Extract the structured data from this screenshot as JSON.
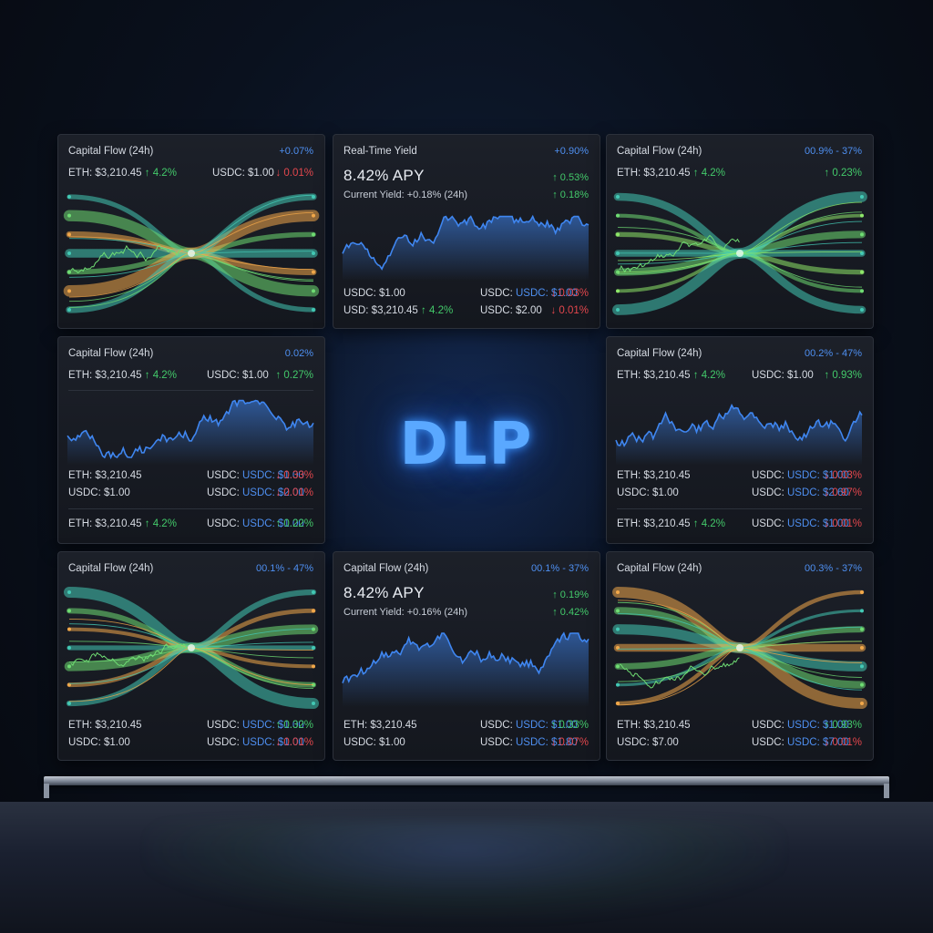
{
  "logo": "DLP",
  "colors": {
    "accent_blue": "#4e8ff0",
    "up_green": "#43c96a",
    "down_red": "#e4474d",
    "flow_green": "#6fdc73",
    "flow_orange": "#f2a84a",
    "flow_teal": "#43c9b5",
    "logo_glow": "#3c96ff"
  },
  "icons": {
    "up": "arrow-up-icon",
    "down": "arrow-down-icon"
  },
  "panels": {
    "p1": {
      "title": "Capital Flow (24h)",
      "badge": "+0.07%",
      "row1": {
        "a": "ETH: $3,210.45",
        "a_change": "↑ 4.2%",
        "b": "USDC: $1.00",
        "c": "↓ 0.01%"
      }
    },
    "p2": {
      "title": "Real-Time Yield",
      "badge": "+0.90%",
      "headline": "8.42% APY",
      "headline_change": "↑ 0.53%",
      "sub": "Current Yield: +0.18% (24h)",
      "sub_change": "↑ 0.18%",
      "row1": {
        "a": "USDC: $1.00",
        "b": "USDC: $1.00",
        "c": "↓ 0.03%"
      },
      "row2": {
        "a": "USD: $3,210.45",
        "a_change": "↑ 4.2%",
        "b": "USDC: $2.00",
        "c": "↓ 0.01%"
      }
    },
    "p3": {
      "title": "Capital Flow (24h)",
      "badge": "00.9% - 37%",
      "row1": {
        "a": "ETH: $3,210.45",
        "a_change": "↑ 4.2%",
        "c": "↑ 0.23%"
      }
    },
    "p4": {
      "title": "Capital Flow (24h)",
      "badge": "0.02%",
      "row1": {
        "a": "ETH: $3,210.45",
        "a_change": "↑ 4.2%",
        "b": "USDC: $1.00",
        "c": "↑ 0.27%"
      },
      "row2": {
        "a": "ETH: $3,210.45",
        "b": "USDC: $1.00",
        "c": "↓ 0.33%"
      },
      "row3": {
        "a": "USDC: $1.00",
        "b": "USDC: $2.00",
        "c": "↓ 0.01%"
      },
      "row4": {
        "a": "ETH: $3,210.45",
        "a_change": "↑ 4.2%",
        "b": "USDC: $1.00",
        "c": "↑ 0.22%"
      }
    },
    "p5": {
      "title": "Capital Flow (24h)",
      "badge": "00.2% - 47%",
      "row1": {
        "a": "ETH: $3,210.45",
        "a_change": "↑ 4.2%",
        "b": "USDC: $1.00",
        "c": "↑ 0.93%"
      },
      "row2": {
        "a": "ETH: $3,210.45",
        "b": "USDC: $1.00",
        "c": "↓ 0.03%"
      },
      "row3": {
        "a": "USDC: $1.00",
        "b": "USDC: $2.60",
        "c": "↓ 0.97%"
      },
      "row4": {
        "a": "ETH: $3,210.45",
        "a_change": "↑ 4.2%",
        "b": "USDC: $1.00",
        "c": "↓ 0.01%"
      }
    },
    "p6": {
      "title": "Capital Flow (24h)",
      "badge": "00.1% - 47%",
      "row1": {
        "a": "ETH: $3,210.45",
        "b": "USDC: $1.00",
        "c": "↑ 0.32%"
      },
      "row2": {
        "a": "USDC: $1.00",
        "b": "USDC: $1.00",
        "c": "↓ 0.01%"
      }
    },
    "p7": {
      "title": "Capital Flow (24h)",
      "badge": "00.1% - 37%",
      "headline": "8.42% APY",
      "headline_change": "↑ 0.19%",
      "sub": "Current Yield: +0.16% (24h)",
      "sub_change": "↑ 0.42%",
      "row1": {
        "a": "ETH: $3,210.45",
        "b": "USDC: $1.00",
        "c": "↑ 0.33%"
      },
      "row2": {
        "a": "USDC: $1.00",
        "b": "USDC: $1.80",
        "c": "↓ 0.07%"
      }
    },
    "p8": {
      "title": "Capital Flow (24h)",
      "badge": "00.3% - 37%",
      "row1": {
        "a": "ETH: $3,210.45",
        "b": "USDC: $1.00",
        "c": "↑ 0.93%"
      },
      "row2": {
        "a": "USDC: $7.00",
        "b": "USDC: $7.00",
        "c": "↓ 0.01%"
      }
    }
  },
  "charts": {
    "flow_left": {
      "type": "flow",
      "palette": [
        "#43c9b5",
        "#6fdc73",
        "#f2a84a"
      ],
      "seed": 3
    },
    "flow_right": {
      "type": "flow",
      "palette": [
        "#43c9b5",
        "#6fdc73",
        "#8fe86a"
      ],
      "seed": 7
    },
    "flow_bottom_left": {
      "type": "flow",
      "palette": [
        "#43c9b5",
        "#6fdc73",
        "#f2a84a"
      ],
      "seed": 11
    },
    "flow_bottom_right": {
      "type": "flow",
      "palette": [
        "#f2a84a",
        "#6fdc73",
        "#43c9b5"
      ],
      "seed": 5
    },
    "yield_line": {
      "type": "line",
      "color": "#3f86f0",
      "seed": 2
    },
    "line_p4": {
      "type": "line",
      "color": "#3f86f0",
      "seed": 9
    },
    "line_p5": {
      "type": "line",
      "color": "#3f86f0",
      "seed": 13
    },
    "line_p7": {
      "type": "line",
      "color": "#3f86f0",
      "seed": 17
    }
  }
}
